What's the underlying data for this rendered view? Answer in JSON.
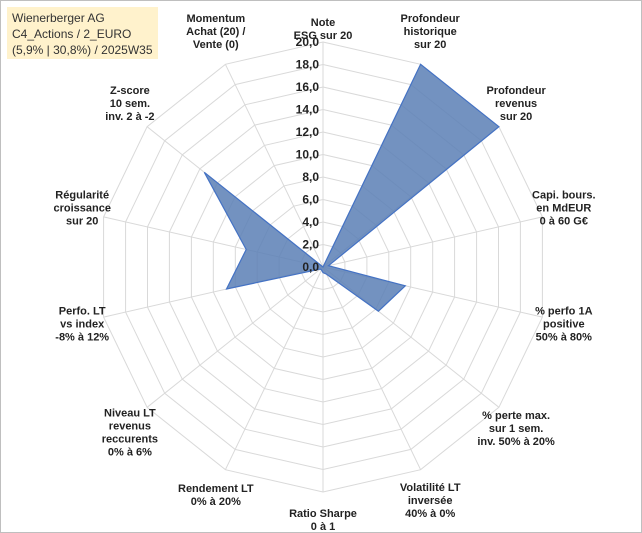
{
  "header": {
    "lines": [
      "Wienerberger AG",
      "C4_Actions / 2_EURO",
      "(5,9% | 30,8%) / 2025W35"
    ]
  },
  "chart_data": {
    "type": "radar",
    "r_min": 0,
    "r_max": 20,
    "r_step": 2,
    "tick_labels": [
      "0,0",
      "2,0",
      "4,0",
      "6,0",
      "8,0",
      "10,0",
      "12,0",
      "14,0",
      "16,0",
      "18,0",
      "20,0"
    ],
    "grid": true,
    "legend": "none",
    "fill_color": "#5b7fb5",
    "line_color": "#4472c4",
    "axes": [
      {
        "label": [
          "Note",
          "ESG sur 20"
        ],
        "value": 0
      },
      {
        "label": [
          "Profondeur",
          "historique",
          "sur 20"
        ],
        "value": 20
      },
      {
        "label": [
          "Profondeur",
          "revenus",
          "sur 20"
        ],
        "value": 20
      },
      {
        "label": [
          "Capi. bours.",
          "en MdEUR",
          "0 à 60 G€"
        ],
        "value": 0.5
      },
      {
        "label": [
          "% perfo 1A",
          "positive",
          "50% à 80%"
        ],
        "value": 7.5
      },
      {
        "label": [
          "% perte max.",
          "sur 1 sem.",
          "inv. 50% à 20%"
        ],
        "value": 6.3
      },
      {
        "label": [
          "Volatilité LT",
          "inversée",
          "40% à 0%"
        ],
        "value": 0.7
      },
      {
        "label": [
          "Ratio Sharpe",
          "0 à 1"
        ],
        "value": 0.5
      },
      {
        "label": [
          "Rendement LT",
          "0% à 20%"
        ],
        "value": 0.3
      },
      {
        "label": [
          "Niveau LT",
          "revenus",
          "reccurents",
          "0% à 6%"
        ],
        "value": 0.3
      },
      {
        "label": [
          "Perfo. LT",
          "vs index",
          "-8% à 12%"
        ],
        "value": 8.8
      },
      {
        "label": [
          "Régularité",
          "croissance",
          "sur 20"
        ],
        "value": 7.0
      },
      {
        "label": [
          "Z-score",
          "10 sem.",
          "inv. 2 à -2"
        ],
        "value": 13.5
      },
      {
        "label": [
          "Momentum",
          "Achat (20) /",
          "Vente (0)"
        ],
        "value": 0
      }
    ]
  }
}
